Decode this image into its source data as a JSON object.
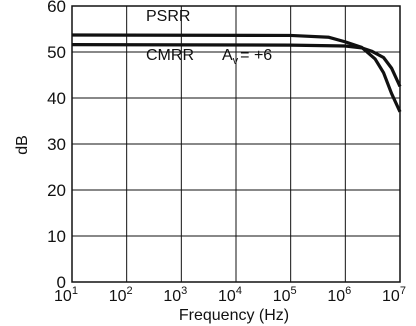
{
  "chart_data": {
    "type": "line",
    "xlabel": "Frequency (Hz)",
    "ylabel": "dB",
    "x_scale": "log",
    "xlim": [
      10,
      10000000
    ],
    "ylim": [
      0,
      60
    ],
    "grid": true,
    "y_ticks": [
      "0",
      "10",
      "20",
      "30",
      "40",
      "50",
      "60"
    ],
    "x_ticks": [
      {
        "base": "10",
        "exp": "1",
        "value": 10
      },
      {
        "base": "10",
        "exp": "2",
        "value": 100
      },
      {
        "base": "10",
        "exp": "3",
        "value": 1000
      },
      {
        "base": "10",
        "exp": "4",
        "value": 10000
      },
      {
        "base": "10",
        "exp": "5",
        "value": 100000
      },
      {
        "base": "10",
        "exp": "6",
        "value": 1000000
      },
      {
        "base": "10",
        "exp": "7",
        "value": 10000000
      }
    ],
    "series": [
      {
        "name": "PSRR",
        "points": [
          [
            10,
            53.7
          ],
          [
            100000,
            53.6
          ],
          [
            500000,
            53.2
          ],
          [
            1000000,
            52.2
          ],
          [
            2000000,
            51.0
          ],
          [
            3500000,
            48.5
          ],
          [
            5000000,
            45.5
          ],
          [
            7000000,
            41.0
          ],
          [
            10000000,
            37.0
          ]
        ]
      },
      {
        "name": "CMRR",
        "points": [
          [
            10,
            51.6
          ],
          [
            100000,
            51.5
          ],
          [
            1000000,
            51.3
          ],
          [
            2000000,
            50.9
          ],
          [
            3000000,
            50.2
          ],
          [
            5000000,
            48.8
          ],
          [
            7000000,
            46.5
          ],
          [
            10000000,
            42.5
          ]
        ]
      }
    ],
    "annotations": {
      "psrr": "PSRR",
      "cmrr": "CMRR",
      "gain_symbol": "A",
      "gain_subscript": "v",
      "gain_value": "= +6"
    },
    "colors": {
      "line": "#111111",
      "grid": "#111111"
    }
  }
}
